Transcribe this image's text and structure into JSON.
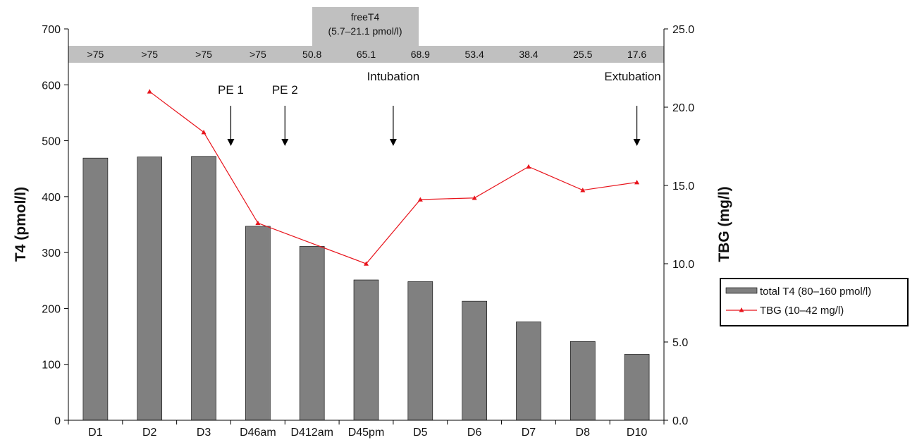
{
  "chart_data": {
    "type": "bar",
    "categories": [
      "D1",
      "D2",
      "D3",
      "D46am",
      "D412am",
      "D45pm",
      "D5",
      "D6",
      "D7",
      "D8",
      "D10"
    ],
    "series": [
      {
        "name": "total T4 (80–160 pmol/l)",
        "type": "bar",
        "axis": "left",
        "color": "#808080",
        "values": [
          469,
          471,
          472,
          347,
          311,
          251,
          248,
          213,
          176,
          141,
          118
        ]
      },
      {
        "name": "TBG (10–42 mg/l)",
        "type": "line",
        "axis": "right",
        "color": "#e8141c",
        "marker": "triangle",
        "values": [
          null,
          21.0,
          18.4,
          12.6,
          null,
          10.0,
          14.1,
          14.2,
          16.2,
          14.7,
          15.2
        ]
      }
    ],
    "left_axis": {
      "label": "T4 (pmol/l)",
      "range": [
        0,
        700
      ],
      "ticks": [
        "0",
        "100",
        "200",
        "300",
        "400",
        "500",
        "600",
        "700"
      ]
    },
    "right_axis": {
      "label": "TBG (mg/l)",
      "range": [
        0,
        25
      ],
      "ticks": [
        "0.0",
        "5.0",
        "10.0",
        "15.0",
        "20.0",
        "25.0"
      ]
    },
    "freeT4_band": {
      "title_line1": "freeT4",
      "title_line2": "(5.7–21.1 pmol/l)",
      "values": [
        ">75",
        ">75",
        ">75",
        ">75",
        "50.8",
        "65.1",
        "68.9",
        "53.4",
        "38.4",
        "25.5",
        "17.6"
      ]
    },
    "annotations": [
      {
        "label": "PE 1",
        "at": "D46am",
        "side": "left"
      },
      {
        "label": "PE 2",
        "at": "D412am",
        "side": "left"
      },
      {
        "label": "Intubation",
        "at": "D45pm",
        "side": "right"
      },
      {
        "label": "Extubation",
        "at": "D10",
        "side": "center"
      }
    ],
    "legend_position": "right",
    "grid": false
  }
}
